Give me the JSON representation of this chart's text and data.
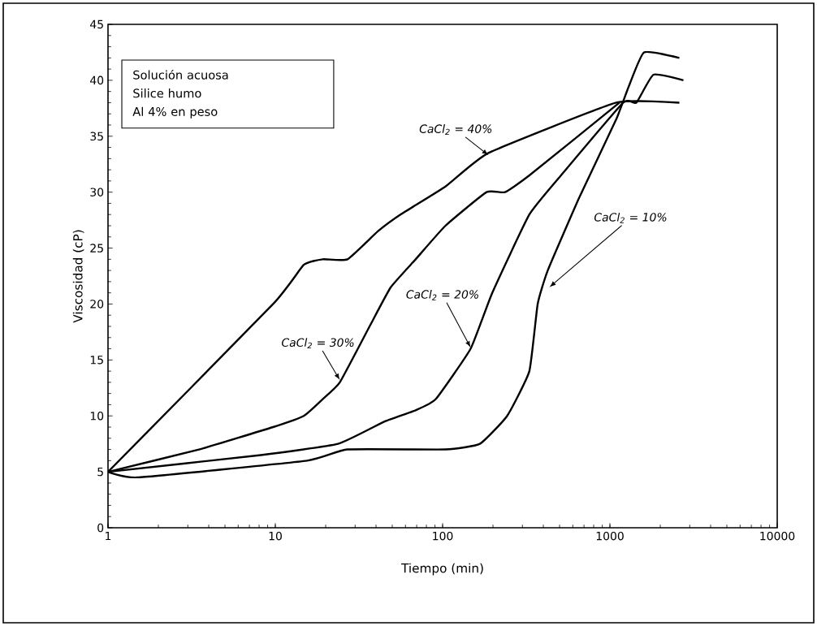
{
  "chart_data": {
    "type": "line",
    "xlabel": "Tiempo (min)",
    "ylabel": "Viscosidad (cP)",
    "log": "x",
    "xlim": [
      1,
      10000
    ],
    "ylim": [
      0,
      45
    ],
    "xticks": [
      1,
      10,
      100,
      1000,
      10000
    ],
    "yticks": [
      0,
      5,
      10,
      15,
      20,
      25,
      30,
      35,
      40,
      45
    ],
    "marker": "none",
    "line_style": "solid",
    "annotations": [
      "Solución acuosa",
      "Silice humo",
      "Al 4% en peso"
    ],
    "series": [
      {
        "name": "CaCl$_{2}$ = 40%",
        "color": "#000000",
        "x": [
          1,
          9.7,
          14.8,
          19.2,
          27,
          41,
          56,
          104,
          188,
          1090,
          2600
        ],
        "values": [
          5,
          20,
          23.5,
          24,
          24,
          26.5,
          28,
          30.5,
          33.5,
          38,
          38
        ]
      },
      {
        "name": "CaCl$_{2}$ = 30%",
        "color": "#000000",
        "x": [
          1,
          3.5,
          9.7,
          14.8,
          19.2,
          24.3,
          36.6,
          49,
          69,
          104,
          183,
          236,
          330,
          1140
        ],
        "values": [
          5,
          7,
          9,
          10,
          11.5,
          13,
          18,
          21.5,
          24,
          27,
          30,
          30,
          31.5,
          38
        ]
      },
      {
        "name": "CaCl$_{2}$ = 20%",
        "color": "#000000",
        "x": [
          1,
          8.2,
          23.7,
          45,
          69,
          91,
          147,
          198,
          330,
          510,
          1200,
          1440,
          1820,
          2750
        ],
        "values": [
          5,
          6.5,
          7.5,
          9.5,
          10.5,
          11.5,
          16,
          21,
          28,
          31.5,
          38,
          38,
          40.5,
          40
        ]
      },
      {
        "name": "CaCl$_{2}$ = 10%",
        "color": "#000000",
        "x": [
          1,
          1.5,
          15.5,
          27,
          104,
          167,
          243,
          330,
          370,
          425,
          655,
          1090,
          1300,
          1600,
          2600
        ],
        "values": [
          5,
          4.5,
          6,
          7,
          7,
          7.5,
          10,
          14,
          20,
          23,
          29.5,
          36.5,
          39.5,
          42.5,
          42
        ]
      }
    ]
  }
}
